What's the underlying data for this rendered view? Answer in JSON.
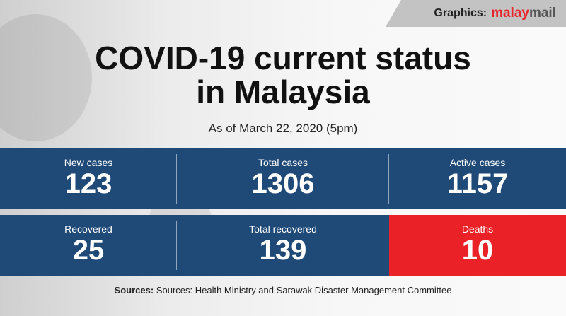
{
  "banner": {
    "prefix": "Graphics:",
    "brand_red": "malay",
    "brand_grey": "mail"
  },
  "title_line1": "COVID-19 current status",
  "title_line2": "in Malaysia",
  "subtitle": "As of March 22, 2020 (5pm)",
  "stats": [
    {
      "label": "New cases",
      "value": "123"
    },
    {
      "label": "Total cases",
      "value": "1306"
    },
    {
      "label": "Active cases",
      "value": "1157"
    },
    {
      "label": "Recovered",
      "value": "25"
    },
    {
      "label": "Total recovered",
      "value": "139"
    },
    {
      "label": "Deaths",
      "value": "10"
    }
  ],
  "sources": {
    "label": "Sources:",
    "text": "Sources: Health Ministry and Sarawak Disaster Management Committee"
  },
  "colors": {
    "blue": "#1f4a78",
    "red": "#ea2227"
  }
}
